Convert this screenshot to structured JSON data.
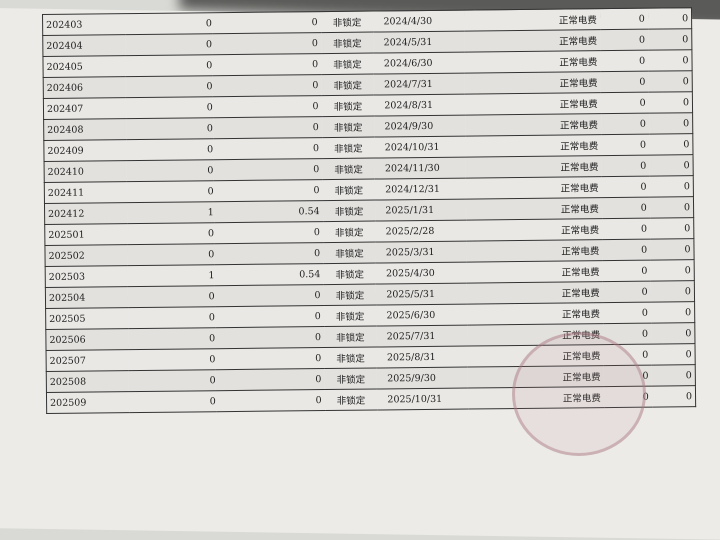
{
  "table": {
    "rows": [
      [
        "202403",
        "0",
        "0",
        "非锁定",
        "2024/4/30",
        "正常电费",
        "0",
        "0"
      ],
      [
        "202404",
        "0",
        "0",
        "非锁定",
        "2024/5/31",
        "正常电费",
        "0",
        "0"
      ],
      [
        "202405",
        "0",
        "0",
        "非锁定",
        "2024/6/30",
        "正常电费",
        "0",
        "0"
      ],
      [
        "202406",
        "0",
        "0",
        "非锁定",
        "2024/7/31",
        "正常电费",
        "0",
        "0"
      ],
      [
        "202407",
        "0",
        "0",
        "非锁定",
        "2024/8/31",
        "正常电费",
        "0",
        "0"
      ],
      [
        "202408",
        "0",
        "0",
        "非锁定",
        "2024/9/30",
        "正常电费",
        "0",
        "0"
      ],
      [
        "202409",
        "0",
        "0",
        "非锁定",
        "2024/10/31",
        "正常电费",
        "0",
        "0"
      ],
      [
        "202410",
        "0",
        "0",
        "非锁定",
        "2024/11/30",
        "正常电费",
        "0",
        "0"
      ],
      [
        "202411",
        "0",
        "0",
        "非锁定",
        "2024/12/31",
        "正常电费",
        "0",
        "0"
      ],
      [
        "202412",
        "1",
        "0.54",
        "非锁定",
        "2025/1/31",
        "正常电费",
        "0",
        "0"
      ],
      [
        "202501",
        "0",
        "0",
        "非锁定",
        "2025/2/28",
        "正常电费",
        "0",
        "0"
      ],
      [
        "202502",
        "0",
        "0",
        "非锁定",
        "2025/3/31",
        "正常电费",
        "0",
        "0"
      ],
      [
        "202503",
        "1",
        "0.54",
        "非锁定",
        "2025/4/30",
        "正常电费",
        "0",
        "0"
      ],
      [
        "202504",
        "0",
        "0",
        "非锁定",
        "2025/5/31",
        "正常电费",
        "0",
        "0"
      ],
      [
        "202505",
        "0",
        "0",
        "非锁定",
        "2025/6/30",
        "正常电费",
        "0",
        "0"
      ],
      [
        "202506",
        "0",
        "0",
        "非锁定",
        "2025/7/31",
        "正常电费",
        "0",
        "0"
      ],
      [
        "202507",
        "0",
        "0",
        "非锁定",
        "2025/8/31",
        "正常电费",
        "0",
        "0"
      ],
      [
        "202508",
        "0",
        "0",
        "非锁定",
        "2025/9/30",
        "正常电费",
        "0",
        "0"
      ],
      [
        "202509",
        "0",
        "0",
        "非锁定",
        "2025/10/31",
        "正常电费",
        "0",
        "0"
      ]
    ]
  }
}
